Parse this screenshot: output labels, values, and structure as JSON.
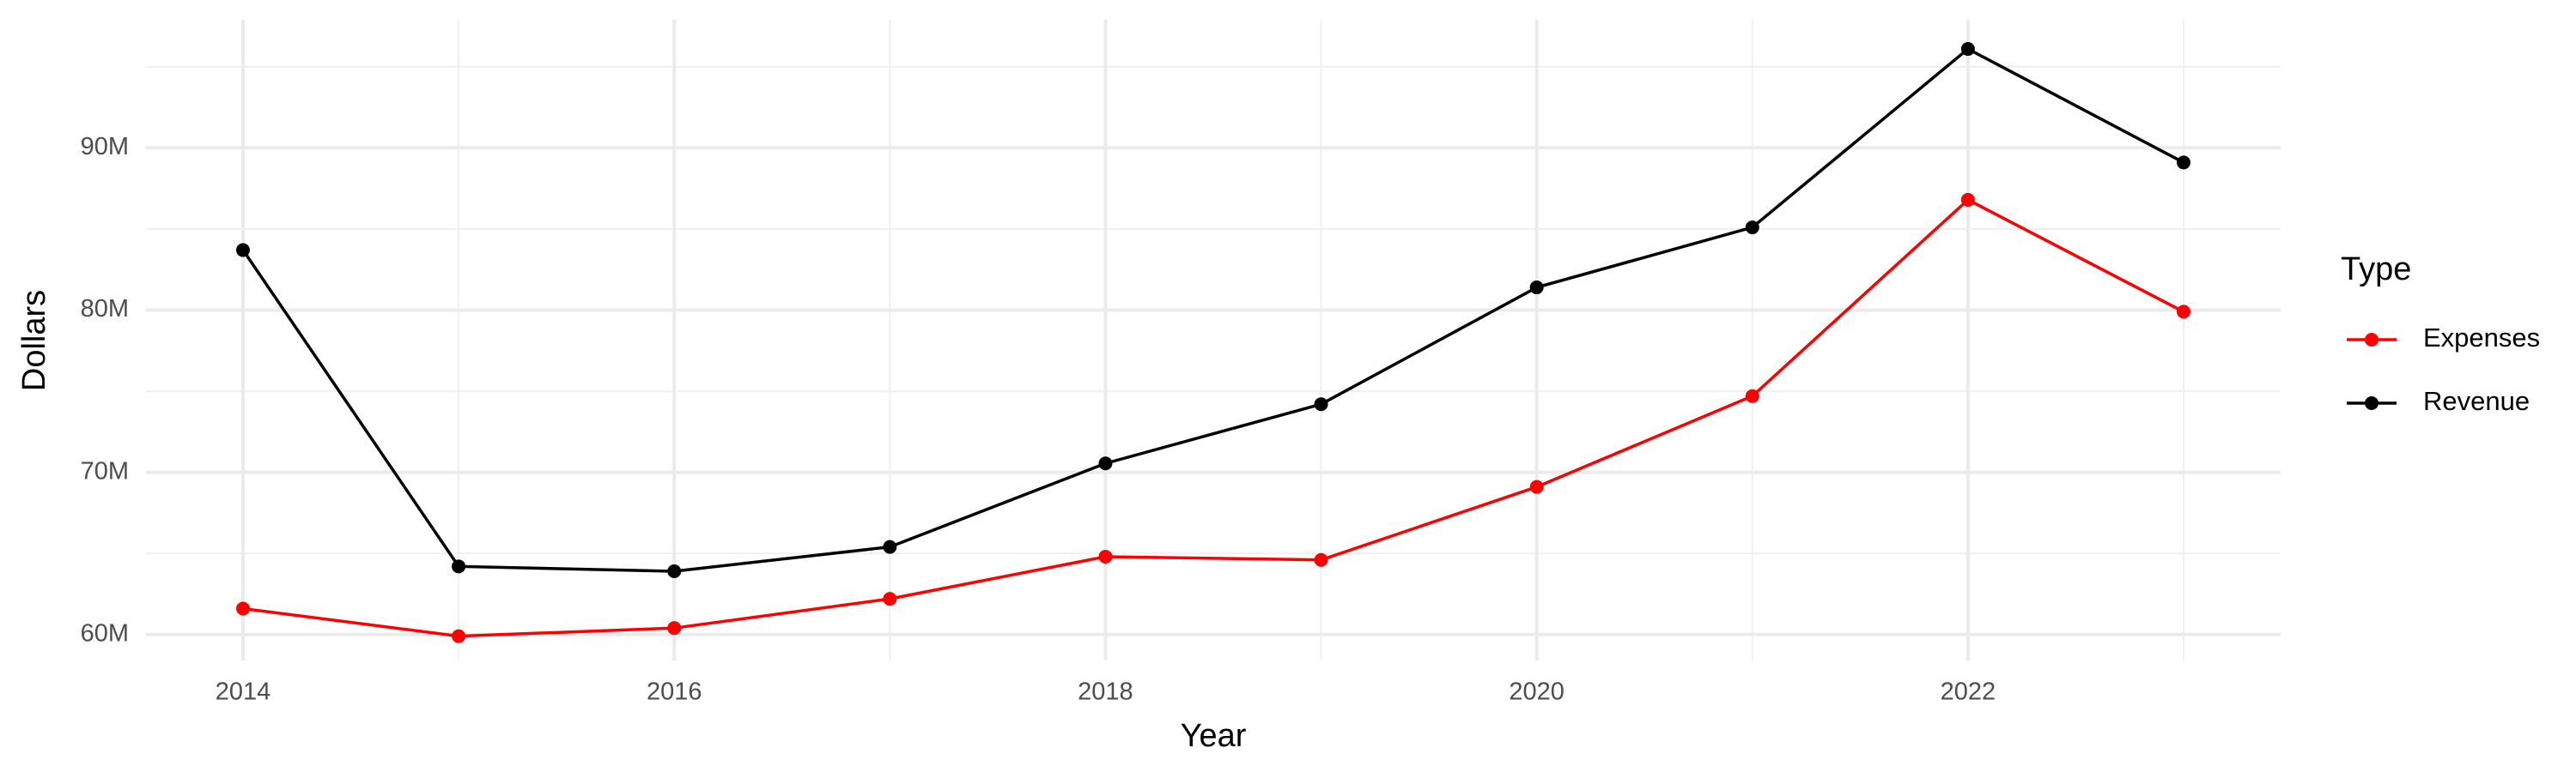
{
  "chart_data": {
    "type": "line",
    "x_label": "Year",
    "y_label": "Dollars",
    "legend_title": "Type",
    "x": [
      2014,
      2015,
      2016,
      2017,
      2018,
      2019,
      2020,
      2021,
      2022,
      2023
    ],
    "series": [
      {
        "name": "Expenses",
        "color": "#ff0000",
        "values": [
          61600000,
          59900000,
          60400000,
          62200000,
          64800000,
          64600000,
          69100000,
          74700000,
          86800000,
          79900000
        ]
      },
      {
        "name": "Revenue",
        "color": "#000000",
        "values": [
          83700000,
          64200000,
          63900000,
          65400000,
          70550000,
          74200000,
          81400000,
          85100000,
          96100000,
          89100000
        ]
      }
    ],
    "xlim": [
      2013.55,
      2023.45
    ],
    "xticks": [
      2014,
      2016,
      2018,
      2020,
      2022
    ],
    "ylim": [
      58400000,
      97900000
    ],
    "yticks": [
      {
        "value": 60000000,
        "label": "60M"
      },
      {
        "value": 70000000,
        "label": "70M"
      },
      {
        "value": 80000000,
        "label": "80M"
      },
      {
        "value": 90000000,
        "label": "90M"
      }
    ],
    "grid": true,
    "legend_position": "right"
  }
}
